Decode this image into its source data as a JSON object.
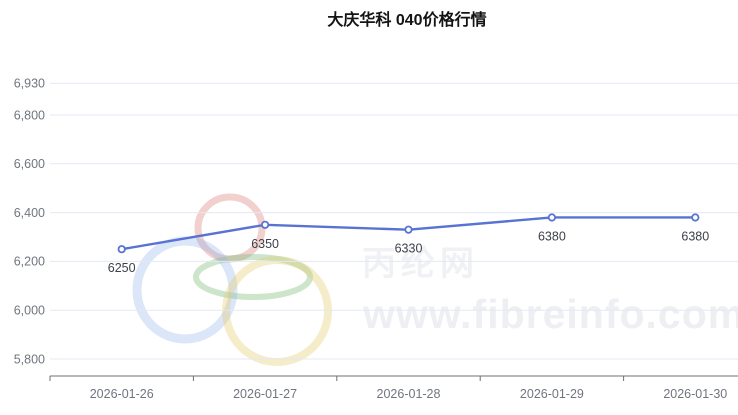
{
  "page": {
    "background": "#ffffff"
  },
  "header": {
    "title": "大庆华科 040价格行情"
  },
  "watermark": {
    "brand_cn": "丙纶网",
    "brand_url": "www.fibreinfo.com",
    "logo_ring_colors": {
      "red": "#dd8f8a",
      "green": "#7fbf7d",
      "blue": "#8fb0e8",
      "yellow": "#e4cd74"
    }
  },
  "chart_data": {
    "type": "line",
    "title": "大庆华科 040价格行情",
    "categories": [
      "2026-01-26",
      "2026-01-27",
      "2026-01-28",
      "2026-01-29",
      "2026-01-30"
    ],
    "values": [
      6250,
      6350,
      6330,
      6380,
      6380
    ],
    "point_labels": [
      "6250",
      "6350",
      "6330",
      "6380",
      "6380"
    ],
    "y_ticks": [
      {
        "value": 6930,
        "label": "6,930"
      },
      {
        "value": 6800,
        "label": "6,800"
      },
      {
        "value": 6600,
        "label": "6,600"
      },
      {
        "value": 6400,
        "label": "6,400"
      },
      {
        "value": 6200,
        "label": "6,200"
      },
      {
        "value": 6000,
        "label": "6,000"
      },
      {
        "value": 5800,
        "label": "5,800"
      }
    ],
    "ylim": [
      5730,
      6930
    ],
    "xlabel": "",
    "ylabel": "",
    "grid": true,
    "legend": "none",
    "colors": {
      "line": "#5873d2",
      "marker_fill": "#ffffff",
      "grid_line": "#e3e9f3",
      "axis_line": "#6e7079",
      "axis_label": "#70757e",
      "point_label": "#3c4049",
      "title": "#141414"
    }
  }
}
